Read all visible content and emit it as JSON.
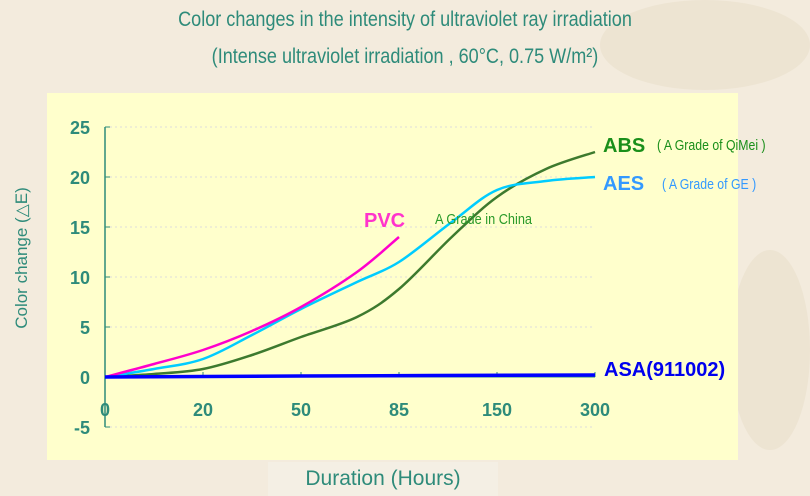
{
  "title": "Color changes in the intensity of ultraviolet ray irradiation",
  "subtitle": "(Intense ultraviolet irradiation ,  60°C, 0.75 W/m²)",
  "chart_data": {
    "type": "line",
    "title": "Color changes in the intensity of ultraviolet ray irradiation",
    "subtitle": "(Intense ultraviolet irradiation ,  60°C, 0.75 W/m²)",
    "xlabel": "Duration (Hours)",
    "ylabel": "Color change (△E)",
    "x_ticks": [
      0,
      20,
      50,
      85,
      150,
      300
    ],
    "x_scale": "categorical (equally spaced ticks)",
    "y_ticks": [
      25,
      20,
      15,
      10,
      5,
      0,
      -5
    ],
    "ylim": [
      -5,
      25
    ],
    "grid": "horizontal dotted",
    "series": [
      {
        "name": "PVC",
        "color": "#ff00cc",
        "x": [
          0,
          10,
          20,
          35,
          50,
          70,
          85
        ],
        "y": [
          0,
          1.3,
          2.7,
          4.6,
          7,
          10.5,
          14
        ]
      },
      {
        "name": "AES",
        "color": "#00ccff",
        "x": [
          0,
          10,
          20,
          35,
          50,
          70,
          85,
          120,
          150,
          225,
          300
        ],
        "y": [
          0,
          0.8,
          1.8,
          4.2,
          6.8,
          9.5,
          11.5,
          15.5,
          18.7,
          19.6,
          20
        ]
      },
      {
        "name": "ABS",
        "color": "#3d7a2e",
        "x": [
          0,
          10,
          20,
          35,
          50,
          70,
          85,
          120,
          150,
          225,
          300
        ],
        "y": [
          0,
          0.3,
          0.8,
          2.2,
          4,
          6,
          8.8,
          14,
          18,
          20.8,
          22.5
        ]
      },
      {
        "name": "ASA(911002)",
        "color": "#0000ff",
        "x": [
          0,
          50,
          300
        ],
        "y": [
          0,
          0.1,
          0.2
        ]
      }
    ],
    "annotations": {
      "pvc": "PVC",
      "china": "A Grade  in China",
      "abs": "ABS",
      "abs_note": "( A Grade of QiMei )",
      "aes": "AES",
      "aes_note": "( A Grade of GE )",
      "asa": "ASA(911002)"
    }
  }
}
